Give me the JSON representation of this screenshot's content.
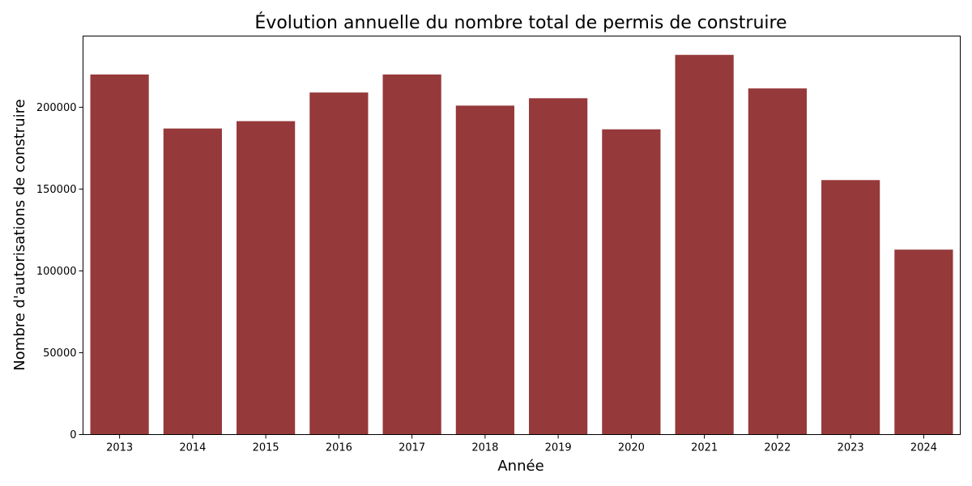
{
  "chart_data": {
    "type": "bar",
    "title": "Évolution annuelle du nombre total de permis de construire",
    "xlabel": "Année",
    "ylabel": "Nombre d'autorisations de construire",
    "categories": [
      "2013",
      "2014",
      "2015",
      "2016",
      "2017",
      "2018",
      "2019",
      "2020",
      "2021",
      "2022",
      "2023",
      "2024"
    ],
    "values": [
      220000,
      187000,
      191500,
      209000,
      220000,
      201000,
      205500,
      186500,
      232000,
      211500,
      155500,
      113000
    ],
    "ylim": [
      0,
      243500
    ],
    "yticks": [
      0,
      50000,
      100000,
      150000,
      200000
    ],
    "ytick_labels": [
      "0",
      "50000",
      "100000",
      "150000",
      "200000"
    ],
    "grid": false,
    "bar_color": "#96393a"
  }
}
